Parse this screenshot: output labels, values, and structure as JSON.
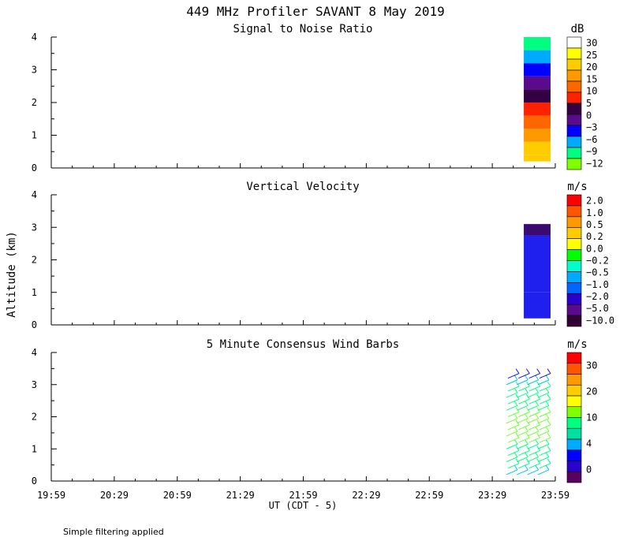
{
  "figure": {
    "title": "449 MHz Profiler SAVANT  8 May 2019",
    "ylabel": "Altitude (km)",
    "xlabel": "UT  (CDT - 5)",
    "footnote": "Simple filtering applied"
  },
  "chart_data": [
    {
      "type": "heatmap",
      "title": "Signal to Noise Ratio",
      "ylabel": "Altitude (km)",
      "xlabel": "UT  (CDT - 5)",
      "x_ticks": [
        "19:59",
        "20:29",
        "20:59",
        "21:29",
        "21:59",
        "22:29",
        "22:59",
        "23:29",
        "23:59"
      ],
      "y_ticks": [
        "0",
        "1",
        "2",
        "3",
        "4"
      ],
      "ylim": [
        0,
        4
      ],
      "colorbar": {
        "unit": "dB",
        "labels": [
          "30",
          "25",
          "20",
          "15",
          "10",
          "5",
          "0",
          "−3",
          "−6",
          "−9",
          "−12"
        ],
        "colors": [
          "#ffffff",
          "#ffff00",
          "#ffcc00",
          "#ff9900",
          "#ff6600",
          "#ff2200",
          "#330044",
          "#5a0a8c",
          "#0000ff",
          "#00aaff",
          "#00ff80",
          "#80ff00"
        ]
      },
      "data_time_range": [
        "23:44",
        "23:59"
      ],
      "altitude_range_km": [
        0.2,
        4.0
      ],
      "profile": [
        {
          "alt_km": 0.2,
          "snr_db": 20
        },
        {
          "alt_km": 0.6,
          "snr_db": 22
        },
        {
          "alt_km": 1.0,
          "snr_db": 18
        },
        {
          "alt_km": 1.4,
          "snr_db": 14
        },
        {
          "alt_km": 1.8,
          "snr_db": 8
        },
        {
          "alt_km": 2.2,
          "snr_db": 2
        },
        {
          "alt_km": 2.6,
          "snr_db": -1
        },
        {
          "alt_km": 3.0,
          "snr_db": -5
        },
        {
          "alt_km": 3.4,
          "snr_db": -8
        },
        {
          "alt_km": 3.8,
          "snr_db": -11
        }
      ]
    },
    {
      "type": "heatmap",
      "title": "Vertical Velocity",
      "ylabel": "Altitude (km)",
      "xlabel": "UT  (CDT - 5)",
      "x_ticks": [
        "19:59",
        "20:29",
        "20:59",
        "21:29",
        "21:59",
        "22:29",
        "22:59",
        "23:29",
        "23:59"
      ],
      "y_ticks": [
        "0",
        "1",
        "2",
        "3",
        "4"
      ],
      "ylim": [
        0,
        4
      ],
      "colorbar": {
        "unit": "m/s",
        "labels": [
          "2.0",
          "1.0",
          "0.5",
          "0.2",
          "0.0",
          "−0.2",
          "−0.5",
          "−1.0",
          "−2.0",
          "−5.0",
          "−10.0"
        ],
        "colors": [
          "#ff0000",
          "#ff5500",
          "#ff9900",
          "#ffcc00",
          "#ffff00",
          "#00ff00",
          "#00ffcc",
          "#00aaff",
          "#0066ff",
          "#2a00cc",
          "#5a0a8c",
          "#330033"
        ]
      },
      "data_time_range": [
        "23:44",
        "23:59"
      ],
      "altitude_range_km": [
        0.2,
        3.1
      ],
      "profile": [
        {
          "alt_km": 0.5,
          "w_ms": -3.0
        },
        {
          "alt_km": 1.5,
          "w_ms": -3.0
        },
        {
          "alt_km": 2.5,
          "w_ms": -3.0
        },
        {
          "alt_km": 3.0,
          "w_ms": -8.0
        }
      ]
    },
    {
      "type": "scatter",
      "title": "5 Minute Consensus Wind Barbs",
      "ylabel": "Altitude (km)",
      "xlabel": "UT  (CDT - 5)",
      "x_ticks": [
        "19:59",
        "20:29",
        "20:59",
        "21:29",
        "21:59",
        "22:29",
        "22:59",
        "23:29",
        "23:59"
      ],
      "y_ticks": [
        "0",
        "1",
        "2",
        "3",
        "4"
      ],
      "ylim": [
        0,
        4
      ],
      "colorbar": {
        "unit": "m/s",
        "labels": [
          "30",
          "20",
          "10",
          "4",
          "0"
        ],
        "colors": [
          "#ff0000",
          "#ff5500",
          "#ff9900",
          "#ffcc00",
          "#ffff00",
          "#80ff00",
          "#00ff80",
          "#00e0a0",
          "#00aaff",
          "#0000ff",
          "#2a00cc",
          "#5a0060"
        ]
      },
      "data_time_range": [
        "23:44",
        "23:59"
      ],
      "altitude_range_km": [
        0.2,
        3.3
      ],
      "barb_columns": [
        "23:44",
        "23:49",
        "23:54",
        "23:59"
      ],
      "barb_levels_km": [
        0.2,
        0.4,
        0.6,
        0.8,
        1.0,
        1.2,
        1.4,
        1.6,
        1.8,
        2.0,
        2.2,
        2.4,
        2.6,
        2.8,
        3.0,
        3.2
      ],
      "wind_speed_ms": [
        6,
        7,
        8,
        8,
        9,
        10,
        12,
        12,
        11,
        10,
        9,
        9,
        9,
        8,
        6,
        3
      ]
    }
  ]
}
